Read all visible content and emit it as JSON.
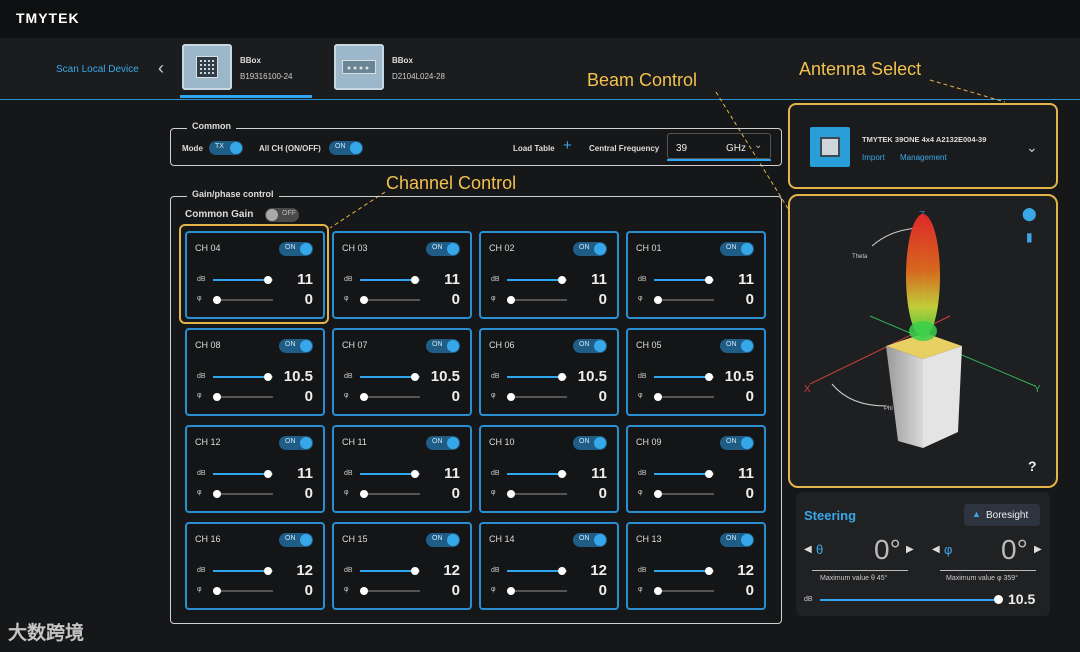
{
  "app": {
    "logo": "TMYTEK"
  },
  "devices": {
    "scan_label": "Scan Local Device",
    "items": [
      {
        "name": "BBox",
        "serial": "B19316100-24"
      },
      {
        "name": "BBox",
        "serial": "D2104L024-28"
      }
    ]
  },
  "annotations": {
    "beam_control": "Beam Control",
    "antenna_select": "Antenna Select",
    "channel_control": "Channel Control"
  },
  "common": {
    "legend": "Common",
    "mode_label": "Mode",
    "mode_value": "TX",
    "allch_label": "All CH (ON/OFF)",
    "allch_value": "ON",
    "load_table_label": "Load Table",
    "freq_label": "Central Frequency",
    "freq_value": "39",
    "freq_unit": "GHz"
  },
  "gain_phase": {
    "legend": "Gain/phase control",
    "common_gain_label": "Common Gain",
    "common_gain_value": "OFF",
    "db_label": "dB",
    "phase_label": "φ",
    "channels": [
      {
        "name": "CH 04",
        "state": "ON",
        "gain": "11",
        "phase": "0",
        "gain_frac": 0.92,
        "phase_frac": 0.0
      },
      {
        "name": "CH 03",
        "state": "ON",
        "gain": "11",
        "phase": "0",
        "gain_frac": 0.92,
        "phase_frac": 0.0
      },
      {
        "name": "CH 02",
        "state": "ON",
        "gain": "11",
        "phase": "0",
        "gain_frac": 0.92,
        "phase_frac": 0.0
      },
      {
        "name": "CH 01",
        "state": "ON",
        "gain": "11",
        "phase": "0",
        "gain_frac": 0.92,
        "phase_frac": 0.0
      },
      {
        "name": "CH 08",
        "state": "ON",
        "gain": "10.5",
        "phase": "0",
        "gain_frac": 0.92,
        "phase_frac": 0.0
      },
      {
        "name": "CH 07",
        "state": "ON",
        "gain": "10.5",
        "phase": "0",
        "gain_frac": 0.92,
        "phase_frac": 0.0
      },
      {
        "name": "CH 06",
        "state": "ON",
        "gain": "10.5",
        "phase": "0",
        "gain_frac": 0.92,
        "phase_frac": 0.0
      },
      {
        "name": "CH 05",
        "state": "ON",
        "gain": "10.5",
        "phase": "0",
        "gain_frac": 0.92,
        "phase_frac": 0.0
      },
      {
        "name": "CH 12",
        "state": "ON",
        "gain": "11",
        "phase": "0",
        "gain_frac": 0.92,
        "phase_frac": 0.0
      },
      {
        "name": "CH 11",
        "state": "ON",
        "gain": "11",
        "phase": "0",
        "gain_frac": 0.92,
        "phase_frac": 0.0
      },
      {
        "name": "CH 10",
        "state": "ON",
        "gain": "11",
        "phase": "0",
        "gain_frac": 0.92,
        "phase_frac": 0.0
      },
      {
        "name": "CH 09",
        "state": "ON",
        "gain": "11",
        "phase": "0",
        "gain_frac": 0.92,
        "phase_frac": 0.0
      },
      {
        "name": "CH 16",
        "state": "ON",
        "gain": "12",
        "phase": "0",
        "gain_frac": 0.92,
        "phase_frac": 0.0
      },
      {
        "name": "CH 15",
        "state": "ON",
        "gain": "12",
        "phase": "0",
        "gain_frac": 0.92,
        "phase_frac": 0.0
      },
      {
        "name": "CH 14",
        "state": "ON",
        "gain": "12",
        "phase": "0",
        "gain_frac": 0.92,
        "phase_frac": 0.0
      },
      {
        "name": "CH 13",
        "state": "ON",
        "gain": "12",
        "phase": "0",
        "gain_frac": 0.92,
        "phase_frac": 0.0
      }
    ]
  },
  "antenna": {
    "name": "TMYTEK 39ONE 4x4 A2132E004-39",
    "import_label": "Import",
    "management_label": "Management"
  },
  "beam_view": {
    "axis_x": "X",
    "axis_y": "Y",
    "axis_z": "Z",
    "theta_label": "Theta",
    "phi_label": "Phi",
    "help": "?"
  },
  "steering": {
    "title": "Steering",
    "boresight_label": "Boresight",
    "theta_symbol": "θ",
    "theta_value": "0°",
    "theta_max": "Maximum value θ 45°",
    "phi_symbol": "φ",
    "phi_value": "0°",
    "phi_max": "Maximum value φ 359°",
    "db_label": "dB",
    "db_value": "10.5"
  },
  "watermark": "大数跨境",
  "colors": {
    "accent": "#2ea6f0",
    "annotation": "#e2b44a",
    "background": "#161718"
  }
}
